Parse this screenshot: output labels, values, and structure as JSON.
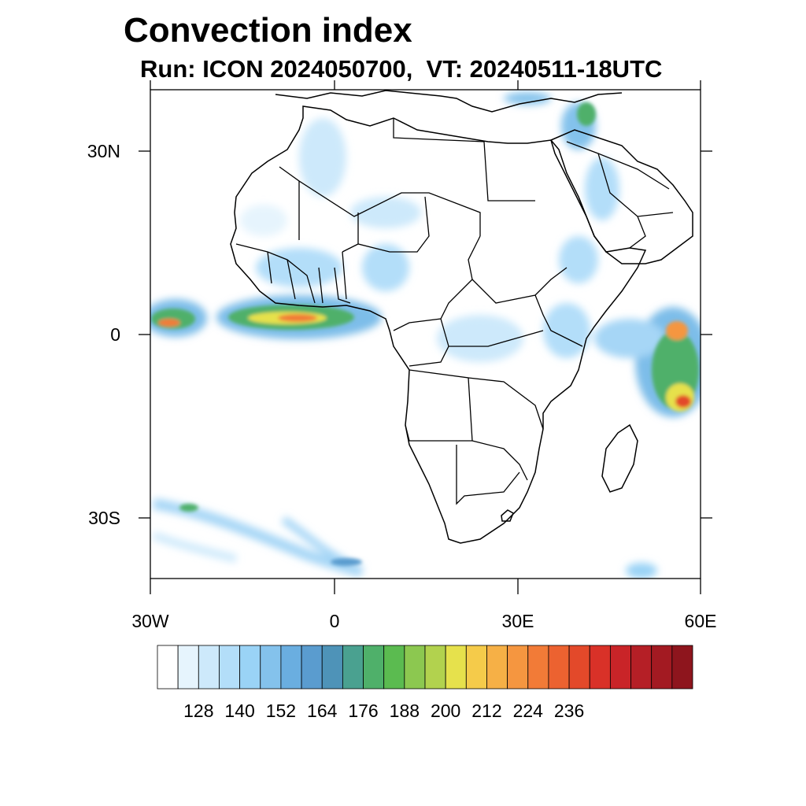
{
  "title": "Convection index",
  "subtitle": "Run: ICON 2024050700,  VT: 20240511-18UTC",
  "map": {
    "lon_range": [
      -30,
      60
    ],
    "lat_range": [
      -40,
      40
    ],
    "lat_labels": [
      {
        "value": 30,
        "text": "30N"
      },
      {
        "value": 0,
        "text": "0"
      },
      {
        "value": -30,
        "text": "30S"
      }
    ],
    "lon_labels": [
      {
        "value": -30,
        "text": "30W"
      },
      {
        "value": 0,
        "text": "0"
      },
      {
        "value": 30,
        "text": "30E"
      },
      {
        "value": 60,
        "text": "60E"
      }
    ],
    "coastline_color": "#000000"
  },
  "colorbar": {
    "colors": [
      "#ffffff",
      "#e6f4fd",
      "#cde9fb",
      "#b3def9",
      "#9ad3f6",
      "#84c2ec",
      "#6aaee0",
      "#5a9ccf",
      "#4e93b8",
      "#4aa190",
      "#4fb06a",
      "#5bbb50",
      "#8cc850",
      "#b2d24e",
      "#e6e14c",
      "#f5cb4a",
      "#f6b046",
      "#f59640",
      "#f27b37",
      "#ec6230",
      "#e3492a",
      "#d93128",
      "#c92428",
      "#b51f26",
      "#a31a22",
      "#8e151d"
    ],
    "tick_labels": [
      "128",
      "140",
      "152",
      "164",
      "176",
      "188",
      "200",
      "212",
      "224",
      "236"
    ]
  },
  "chart_data": {
    "type": "heatmap",
    "title": "Convection index",
    "subtitle": "Run: ICON 2024050700,  VT: 20240511-18UTC",
    "xlim": [
      -30,
      60
    ],
    "ylim": [
      -40,
      40
    ],
    "colorbar_ticks": [
      128,
      140,
      152,
      164,
      176,
      188,
      200,
      212,
      224,
      236
    ],
    "features": [
      {
        "lon": -16,
        "lat": 3,
        "level": 0.8
      },
      {
        "lon": -5,
        "lat": 3.5,
        "level": 0.85
      },
      {
        "lon": -26,
        "lat": 2.5,
        "level": 0.75
      },
      {
        "lon": 56,
        "lat": -7,
        "level": 0.8
      },
      {
        "lon": 56,
        "lat": 0,
        "level": 0.75
      },
      {
        "lon": 52,
        "lat": -3,
        "level": 0.6
      },
      {
        "lon": 45,
        "lat": 37,
        "level": 0.45
      },
      {
        "lon": 25,
        "lat": -2,
        "level": 0.2
      },
      {
        "lon": -8,
        "lat": 8,
        "level": 0.2
      },
      {
        "lon": 7,
        "lat": 12,
        "level": 0.25
      },
      {
        "lon": 40,
        "lat": 20,
        "level": 0.25
      },
      {
        "lon": 0,
        "lat": 28,
        "level": 0.3
      },
      {
        "lon": 38,
        "lat": 8,
        "level": 0.2
      },
      {
        "lon": -28,
        "lat": -28,
        "level": 0.4
      },
      {
        "lon": -5,
        "lat": -34,
        "level": 0.4
      },
      {
        "lon": 12,
        "lat": 22,
        "level": 0.15
      }
    ]
  }
}
